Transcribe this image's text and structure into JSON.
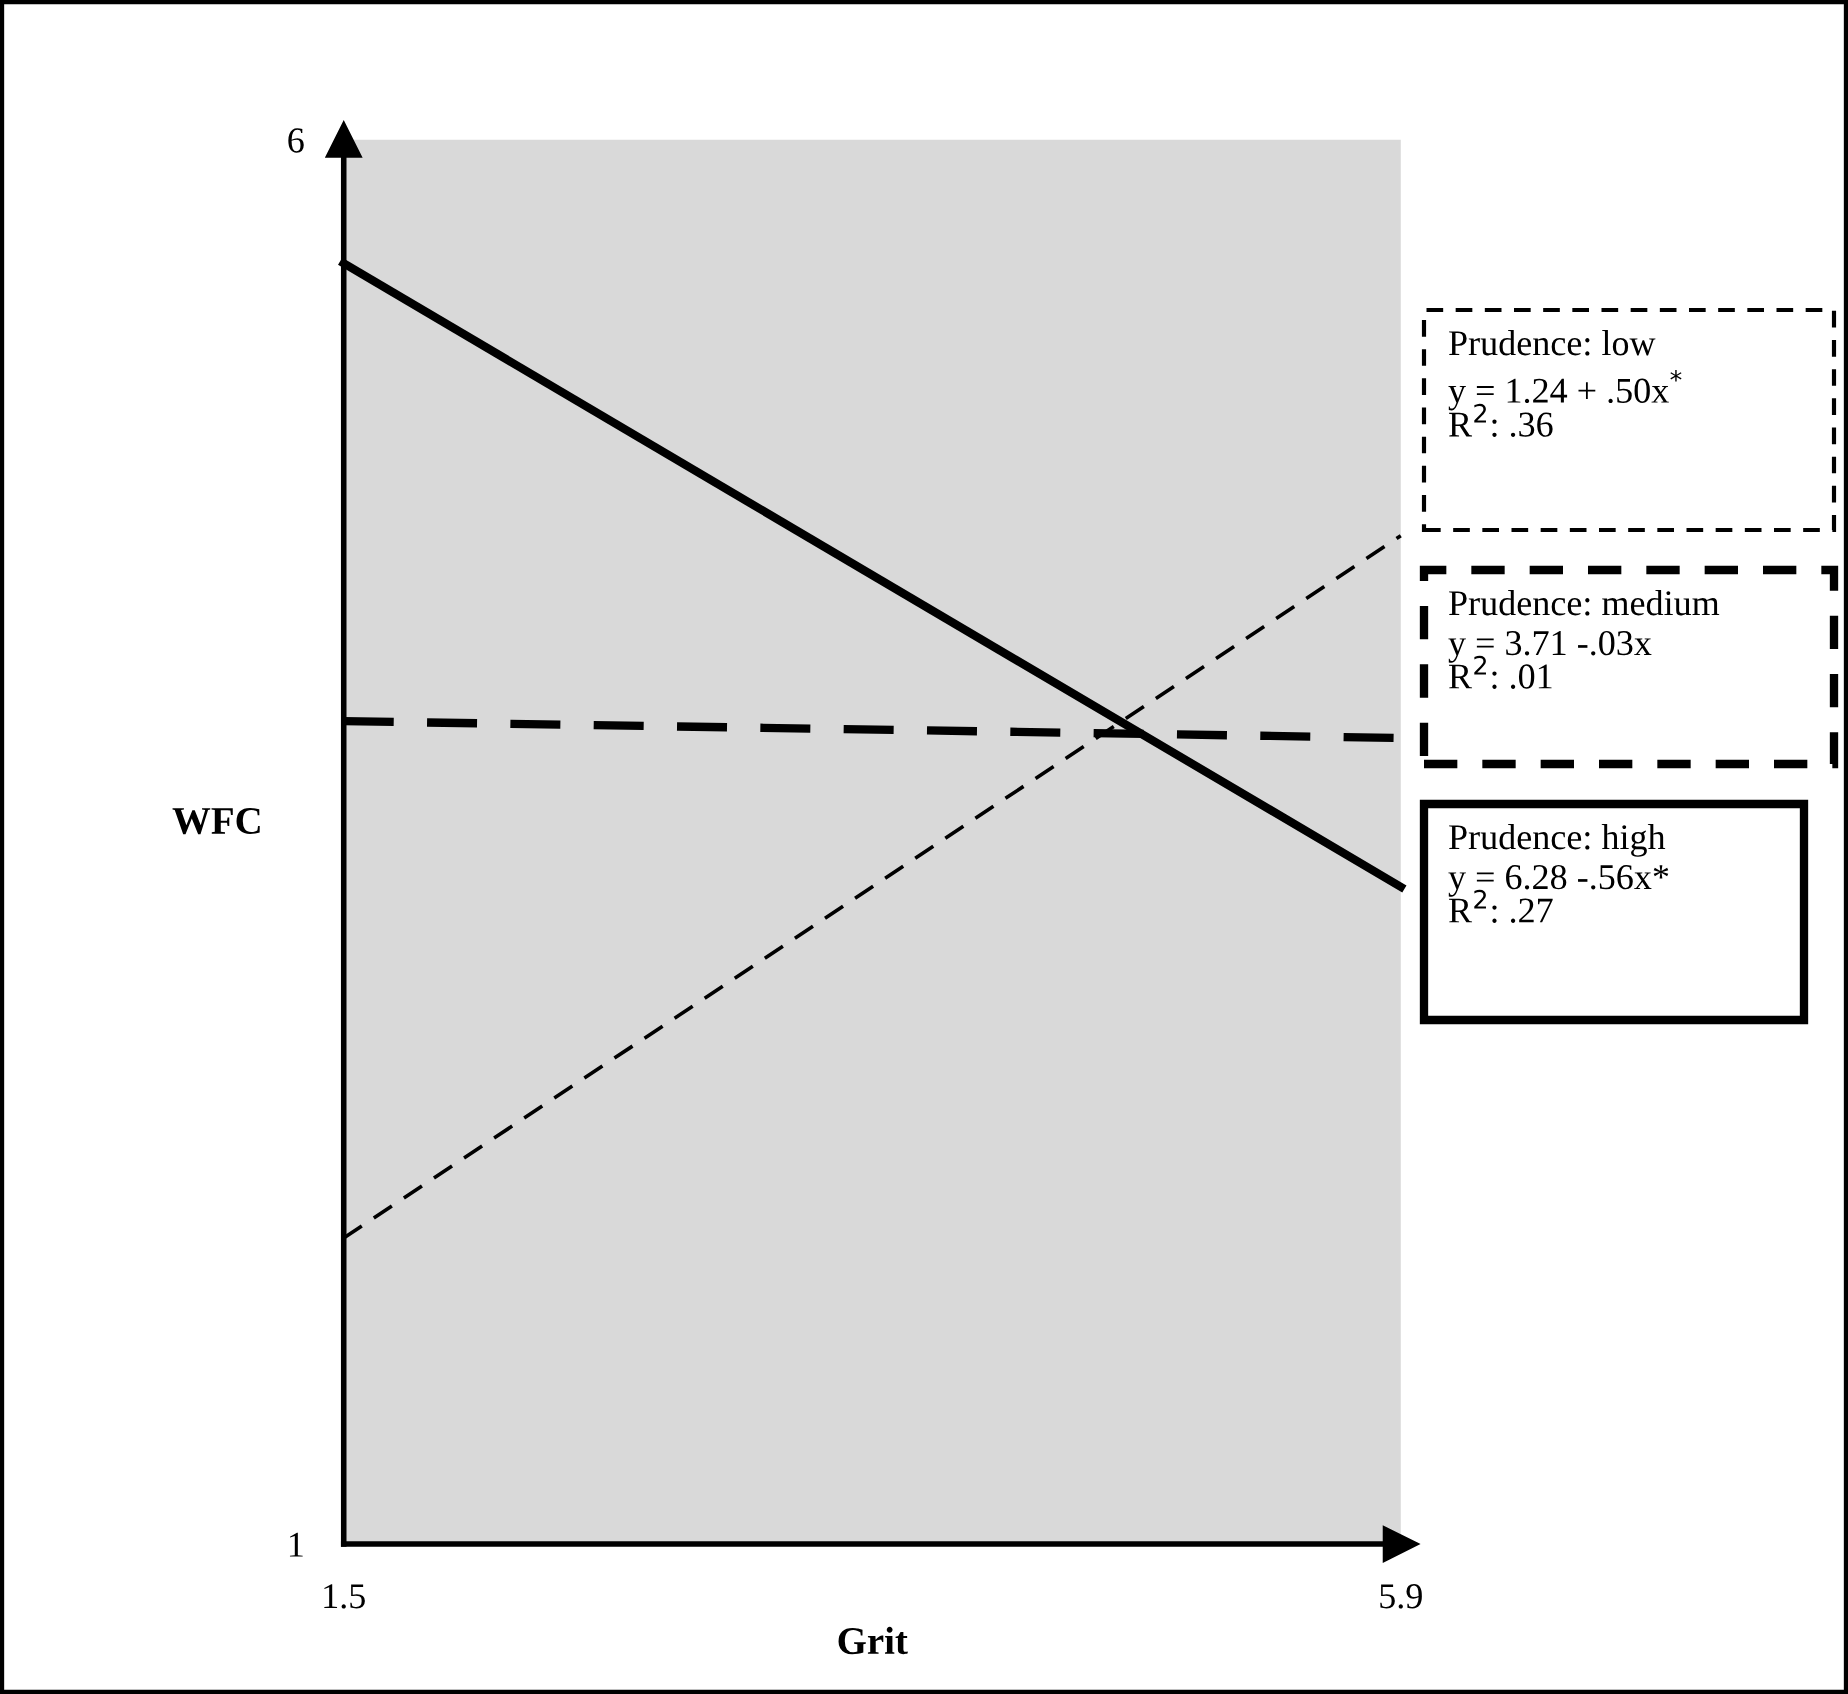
{
  "chart_data": {
    "type": "line",
    "xlabel": "Grit",
    "ylabel": "WFC",
    "x": [
      1.5,
      5.9
    ],
    "xlim": [
      1.5,
      5.9
    ],
    "ylim": [
      1,
      6
    ],
    "xticks": [
      1.5,
      5.9
    ],
    "yticks": [
      1,
      6
    ],
    "grid": false,
    "marker": "none",
    "series": [
      {
        "name": "Prudence: low",
        "color": "#000000",
        "line_style": "dashed",
        "values": [
          2.09,
          4.59
        ]
      },
      {
        "name": "Prudence: medium",
        "color": "#000000",
        "line_style": "dashed",
        "values": [
          3.93,
          3.87
        ]
      },
      {
        "name": "Prudence: high",
        "color": "#000000",
        "line_style": "solid",
        "values": [
          5.56,
          3.34
        ]
      }
    ],
    "annotations": [
      "y = 1.24 + .50x$^{*}$\nR$^{2}$: .36",
      "y = 3.71 -.03x\nR$^{2}$: .01",
      "y = 6.28 -.56x*\nR$^{2}$: .27"
    ]
  }
}
